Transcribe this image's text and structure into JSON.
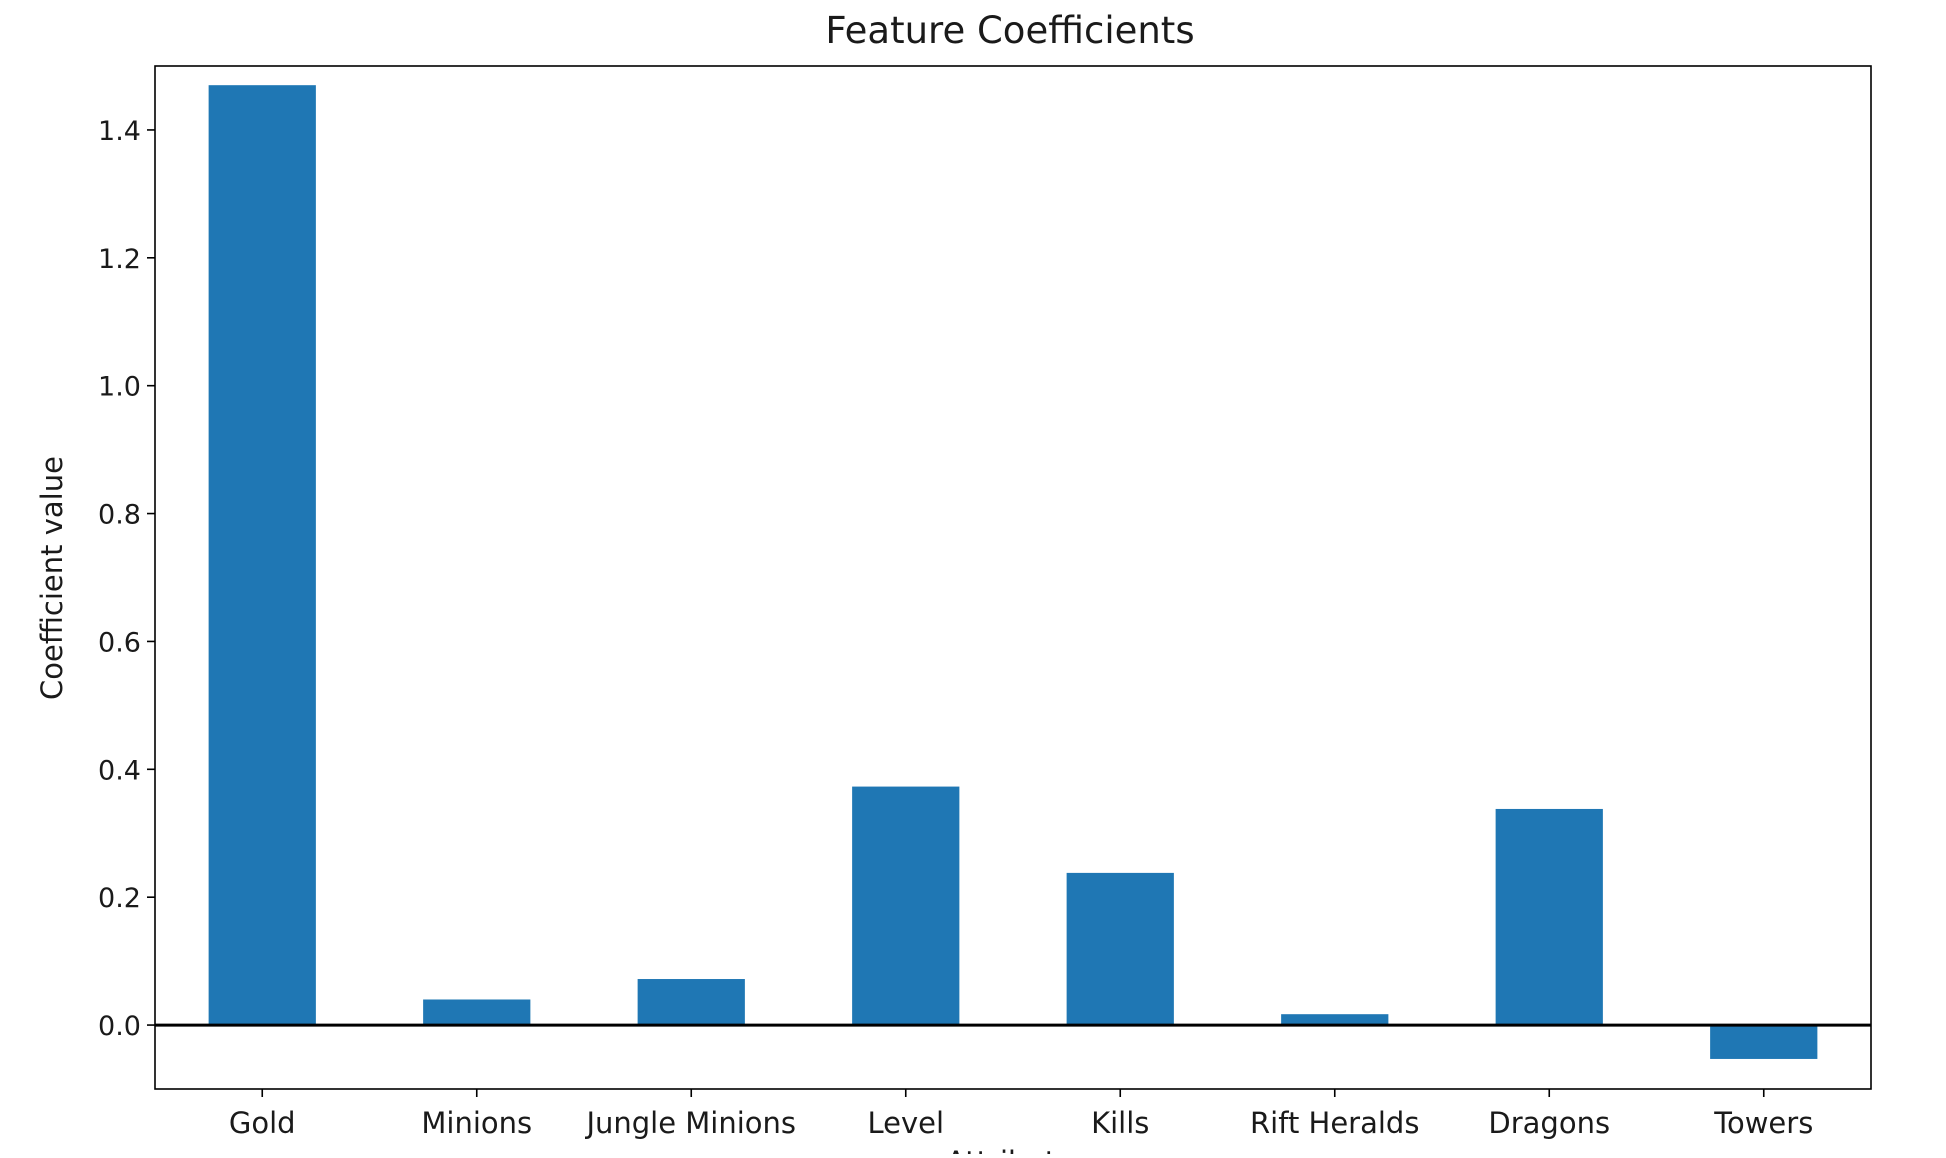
{
  "chart_data": {
    "type": "bar",
    "title": "Feature Coefficients",
    "xlabel": "Attribute",
    "ylabel": "Coefficient value",
    "categories": [
      "Gold",
      "Minions",
      "Jungle Minions",
      "Level",
      "Kills",
      "Rift Heralds",
      "Dragons",
      "Towers"
    ],
    "values": [
      1.47,
      0.04,
      0.072,
      0.373,
      0.238,
      0.017,
      0.338,
      -0.053
    ],
    "ylim": [
      -0.1,
      1.5
    ],
    "yticks": [
      0.0,
      0.2,
      0.4,
      0.6,
      0.8,
      1.0,
      1.2,
      1.4
    ],
    "ytick_labels": [
      "0.0",
      "0.2",
      "0.4",
      "0.6",
      "0.8",
      "1.0",
      "1.2",
      "1.4"
    ],
    "bar_color": "#1f77b4",
    "zero_line_color": "#000000",
    "grid": false,
    "legend": "none"
  }
}
